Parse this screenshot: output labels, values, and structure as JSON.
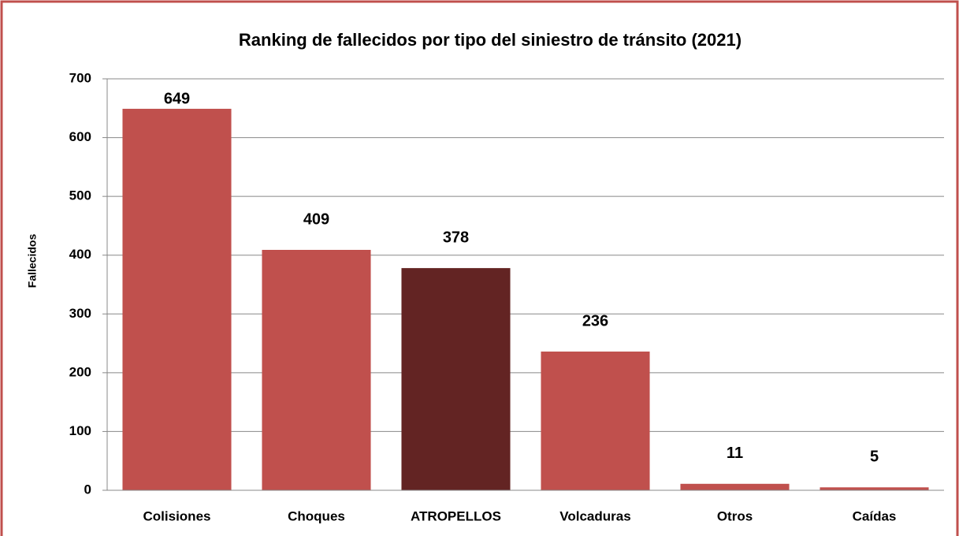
{
  "chart_data": {
    "type": "bar",
    "title": "Ranking de fallecidos por tipo del siniestro de tránsito (2021)",
    "y_label": "Fallecidos",
    "categories": [
      "Colisiones",
      "Choques",
      "ATROPELLOS",
      "Volcaduras",
      "Otros",
      "Caídas"
    ],
    "values": [
      649,
      409,
      378,
      236,
      11,
      5
    ],
    "colors": [
      "#c0504d",
      "#c0504d",
      "#632423",
      "#c0504d",
      "#c0504d",
      "#c0504d"
    ],
    "ylim": [
      0,
      700
    ],
    "yticks": [
      0,
      100,
      200,
      300,
      400,
      500,
      600,
      700
    ],
    "grid": true
  }
}
